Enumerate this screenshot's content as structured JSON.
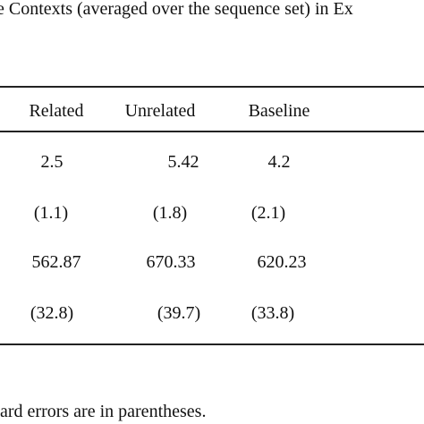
{
  "caption": "e Contexts (averaged over the sequence set) in Ex",
  "table": {
    "header": [
      "Related",
      "Unrelated",
      "Baseline"
    ],
    "rows": [
      [
        "2.5",
        "5.42",
        "4.2"
      ],
      [
        "(1.1)",
        "(1.8)",
        "(2.1)"
      ],
      [
        "562.87",
        "670.33",
        "620.23"
      ],
      [
        "(32.8)",
        "(39.7)",
        "(33.8)"
      ]
    ]
  },
  "note": "ard errors are in parentheses."
}
